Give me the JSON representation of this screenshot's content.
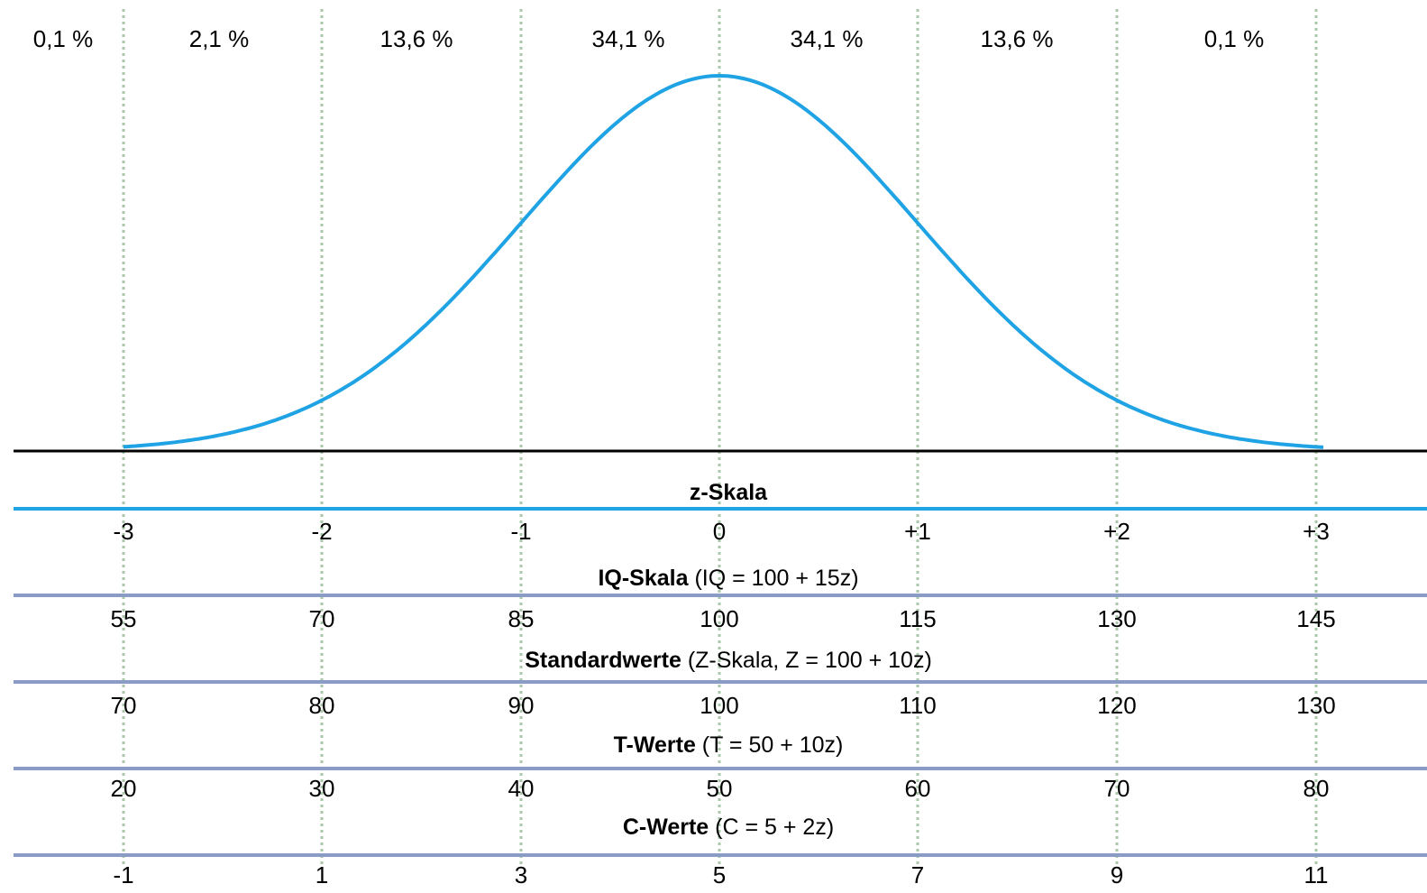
{
  "colors": {
    "curve": "#1fa3e4",
    "axis": "#000000",
    "z_line": "#1fa3e4",
    "scale_line": "#8a9bc6",
    "grid": "#a8c8a8"
  },
  "percentages": [
    "0,1 %",
    "2,1 %",
    "13,6 %",
    "34,1 %",
    "34,1 %",
    "13,6 %",
    "0,1 %"
  ],
  "scales": [
    {
      "bold": "z-Skala",
      "rest": "",
      "ticks": [
        "-3",
        "-2",
        "-1",
        "0",
        "+1",
        "+2",
        "+3"
      ]
    },
    {
      "bold": "IQ-Skala",
      "rest": " (IQ = 100 + 15z)",
      "ticks": [
        "55",
        "70",
        "85",
        "100",
        "115",
        "130",
        "145"
      ]
    },
    {
      "bold": "Standardwerte",
      "rest": " (Z-Skala, Z = 100 + 10z)",
      "ticks": [
        "70",
        "80",
        "90",
        "100",
        "110",
        "120",
        "130"
      ]
    },
    {
      "bold": "T-Werte",
      "rest": " (T = 50 + 10z)",
      "ticks": [
        "20",
        "30",
        "40",
        "50",
        "60",
        "70",
        "80"
      ]
    },
    {
      "bold": "C-Werte",
      "rest": " (C = 5 + 2z)",
      "ticks": [
        "-1",
        "1",
        "3",
        "5",
        "7",
        "9",
        "11"
      ]
    }
  ],
  "chart_data": {
    "type": "line",
    "x": [
      -3,
      -2,
      -1,
      0,
      1,
      2,
      3
    ],
    "ylim": [
      0,
      0.4
    ],
    "grid": true
  }
}
